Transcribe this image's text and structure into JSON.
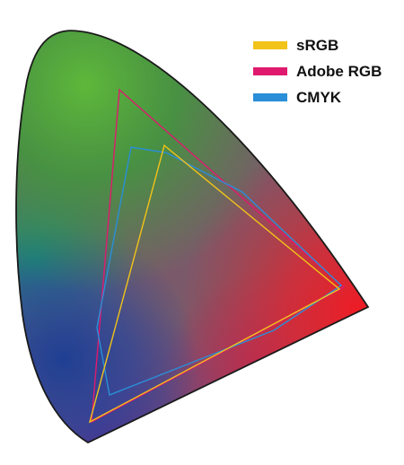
{
  "legend": [
    {
      "label": "sRGB",
      "color": "#f2c318"
    },
    {
      "label": "Adobe RGB",
      "color": "#df1a6e"
    },
    {
      "label": "CMYK",
      "color": "#2a8fd8"
    }
  ],
  "colors": {
    "outline": "#1a1a1a",
    "background": "#ffffff"
  }
}
